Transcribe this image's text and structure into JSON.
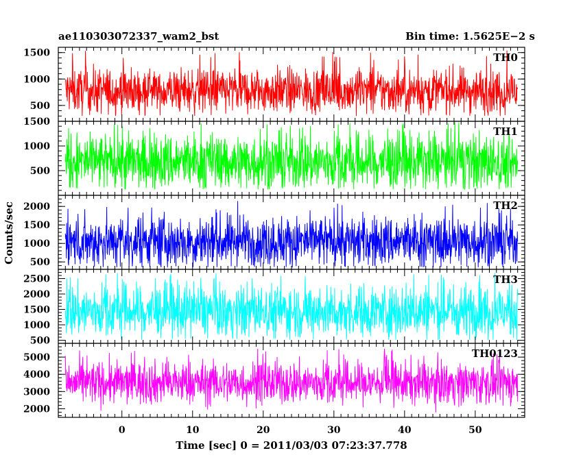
{
  "title_left": "ae110303072337_wam2_bst",
  "title_right": "Bin time: 1.5625E−2 s",
  "ylabel": "Counts/sec",
  "xlabel": "Time [sec] 0 = 2011/03/03 07:23:37.778",
  "chart_data": {
    "type": "line",
    "title": "ae110303072337_wam2_bst",
    "subtitle": "Bin time: 1.5625E−2 s",
    "xlabel": "Time [sec] 0 = 2011/03/03 07:23:37.778",
    "ylabel": "Counts/sec",
    "xlim": [
      -9,
      57
    ],
    "x_data_range": [
      -8,
      56
    ],
    "x_ticks": [
      0,
      10,
      20,
      30,
      40,
      50
    ],
    "grid": false,
    "panels": [
      {
        "name": "TH0",
        "color": "#ff0000",
        "ylim": [
          200,
          1600
        ],
        "y_ticks": [
          500,
          1000,
          1500
        ],
        "base": 300,
        "typical_low": 500,
        "typical_high": 1050,
        "peak": 1550
      },
      {
        "name": "TH1",
        "color": "#00ff00",
        "ylim": [
          0,
          1500
        ],
        "y_ticks": [
          500,
          1000,
          1500
        ],
        "base": 120,
        "typical_low": 300,
        "typical_high": 1050,
        "peak": 1480
      },
      {
        "name": "TH2",
        "color": "#0000ff",
        "ylim": [
          300,
          2300
        ],
        "y_ticks": [
          500,
          1000,
          1500,
          2000
        ],
        "base": 350,
        "typical_low": 600,
        "typical_high": 1500,
        "peak": 2150
      },
      {
        "name": "TH3",
        "color": "#00ffff",
        "ylim": [
          400,
          2800
        ],
        "y_ticks": [
          500,
          1000,
          1500,
          2000,
          2500
        ],
        "base": 500,
        "typical_low": 900,
        "typical_high": 2000,
        "peak": 2700
      },
      {
        "name": "TH0123",
        "color": "#ff00ff",
        "ylim": [
          1500,
          5800
        ],
        "y_ticks": [
          2000,
          3000,
          4000,
          5000
        ],
        "base": 1650,
        "typical_low": 2700,
        "typical_high": 4300,
        "peak": 5500
      }
    ]
  }
}
